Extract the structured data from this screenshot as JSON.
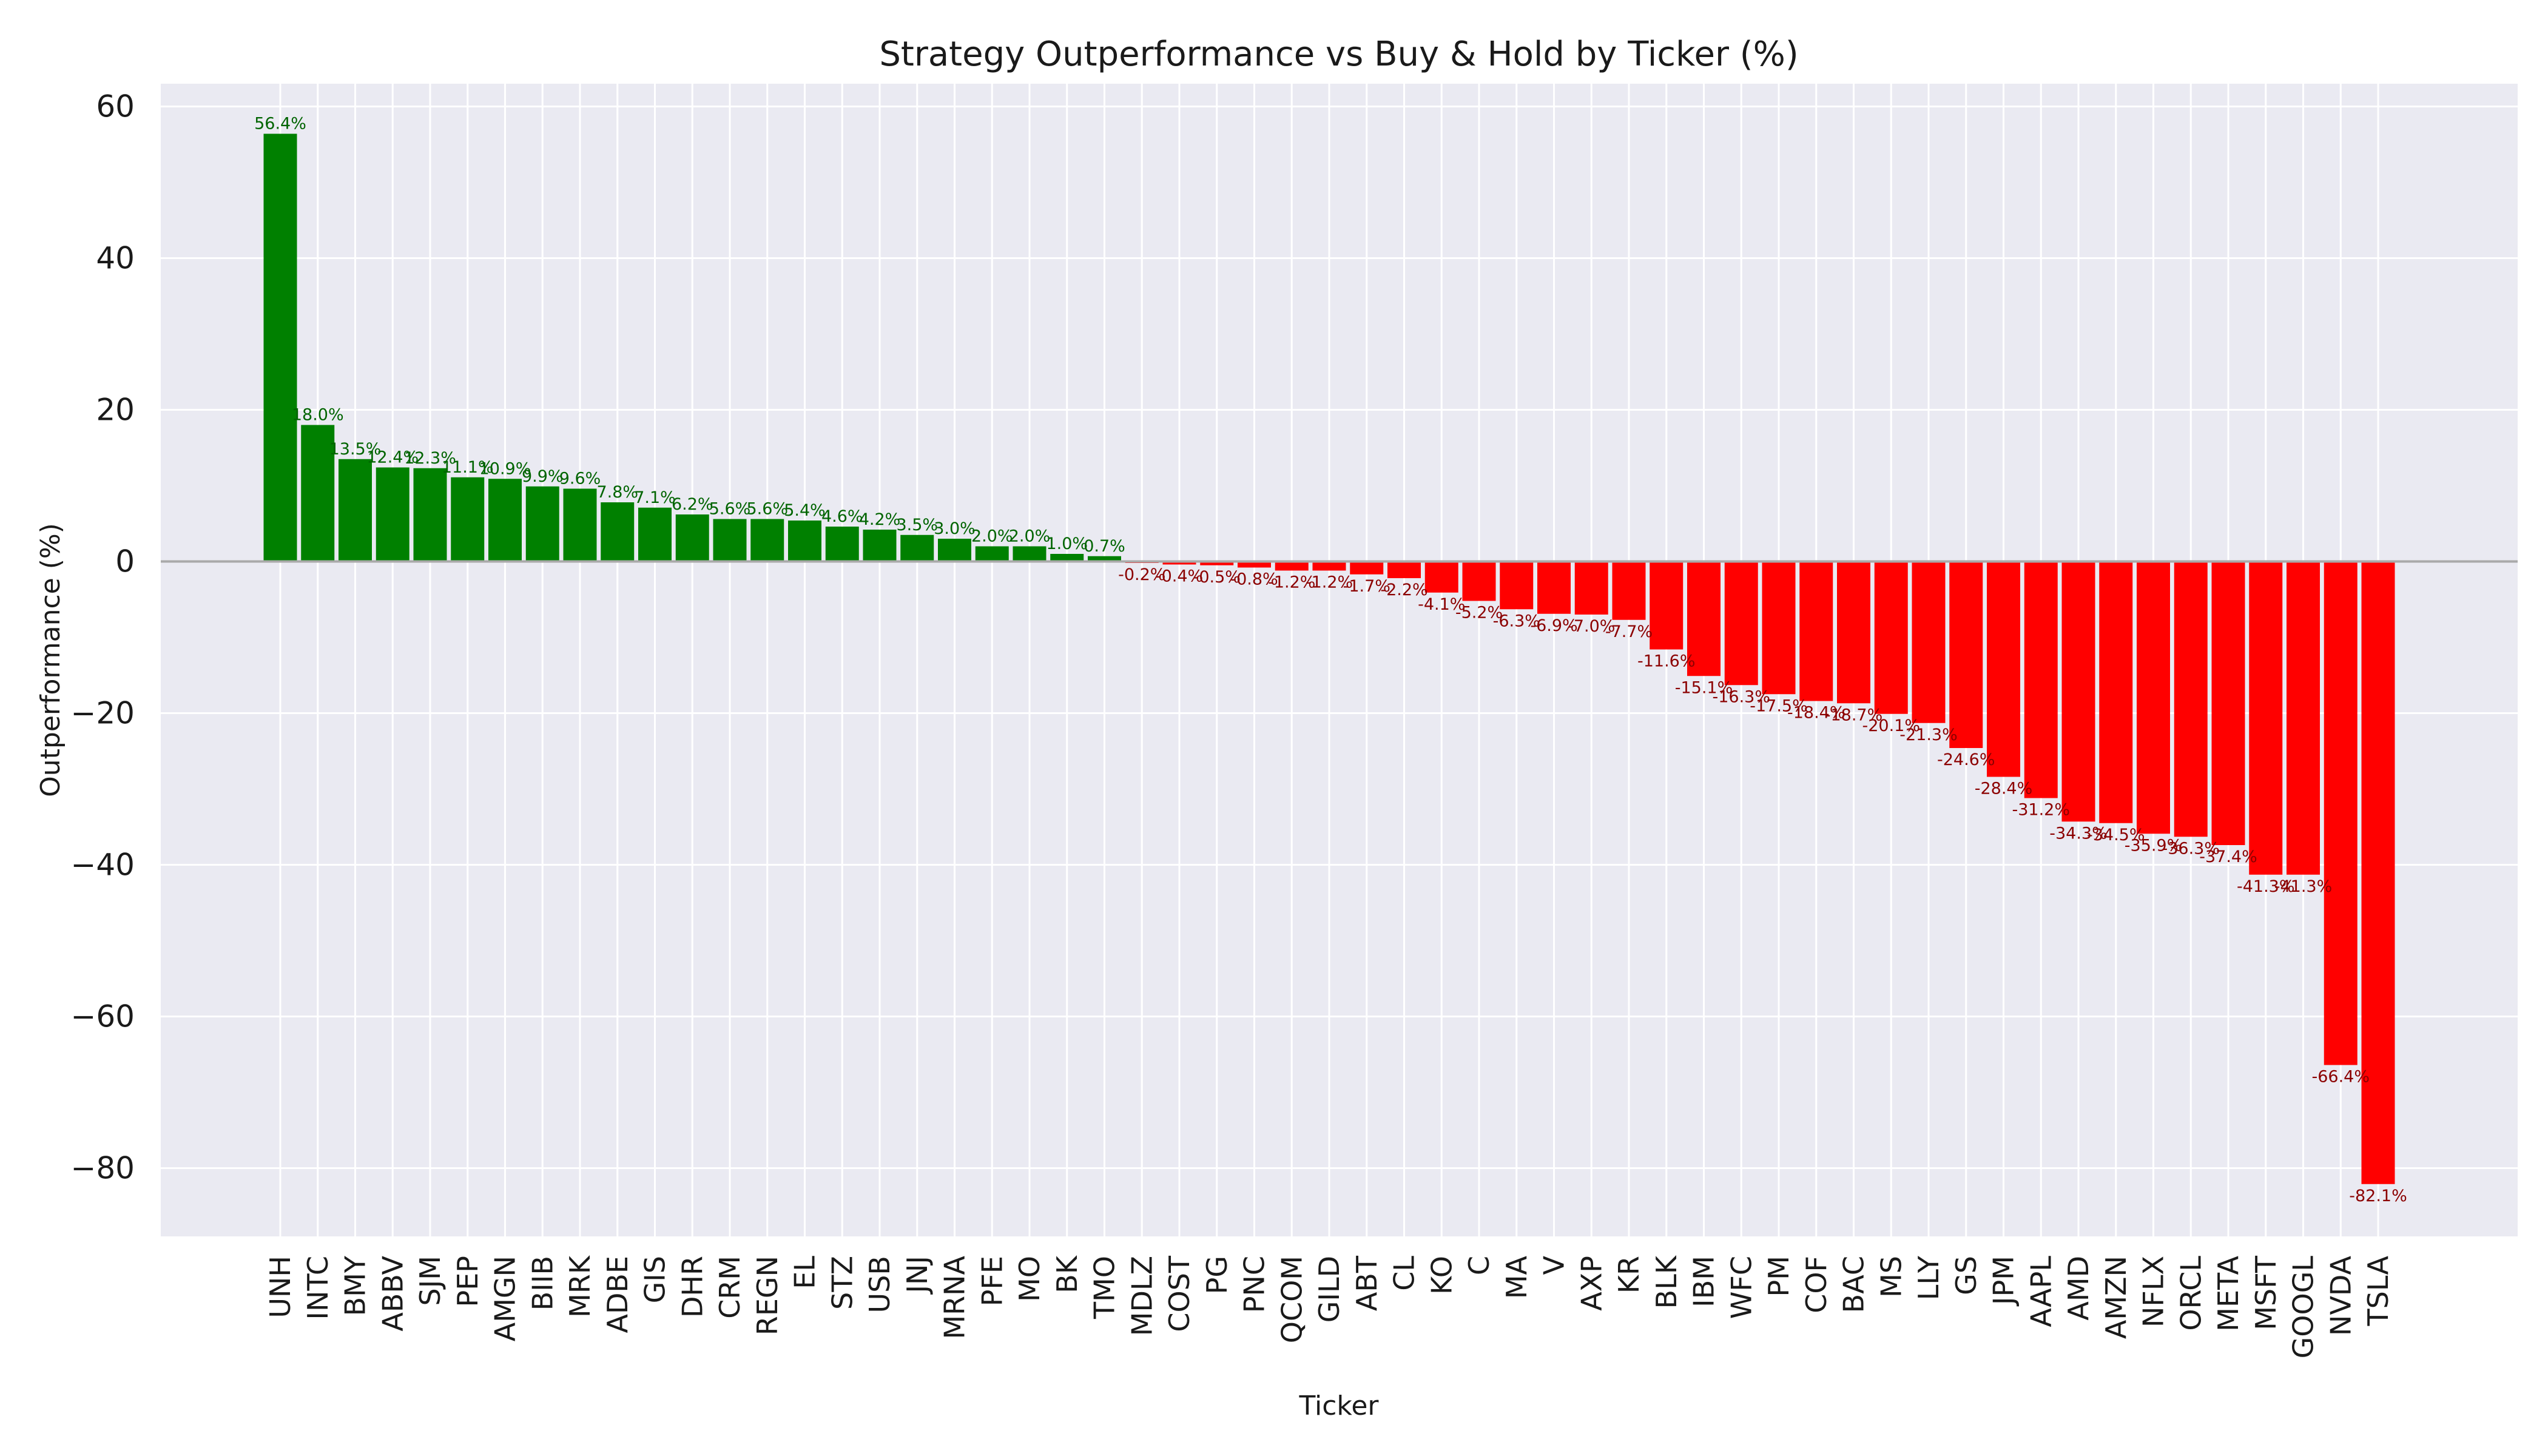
{
  "chart_data": {
    "type": "bar",
    "title": "Strategy Outperformance vs Buy & Hold by Ticker (%)",
    "xlabel": "Ticker",
    "ylabel": "Outperformance (%)",
    "ylim": [
      -89,
      63
    ],
    "yticks": [
      60,
      40,
      20,
      0,
      -20,
      -40,
      -60,
      -80
    ],
    "ytick_labels": [
      "60",
      "40",
      "20",
      "0",
      "−20",
      "−40",
      "−60",
      "−80"
    ],
    "grid": true,
    "zero_line": true,
    "colors": {
      "positive": "#008000",
      "negative": "#ff0000",
      "positive_label": "#006400",
      "negative_label": "#8b0000",
      "background": "#eaeaf2",
      "grid": "#ffffff",
      "zero_line": "#aaaaaa"
    },
    "categories": [
      "UNH",
      "INTC",
      "BMY",
      "ABBV",
      "SJM",
      "PEP",
      "AMGN",
      "BIIB",
      "MRK",
      "ADBE",
      "GIS",
      "DHR",
      "CRM",
      "REGN",
      "EL",
      "STZ",
      "USB",
      "JNJ",
      "MRNA",
      "PFE",
      "MO",
      "BK",
      "TMO",
      "MDLZ",
      "COST",
      "PG",
      "PNC",
      "QCOM",
      "GILD",
      "ABT",
      "CL",
      "KO",
      "C",
      "MA",
      "V",
      "AXP",
      "KR",
      "BLK",
      "IBM",
      "WFC",
      "PM",
      "COF",
      "BAC",
      "MS",
      "LLY",
      "GS",
      "JPM",
      "AAPL",
      "AMD",
      "AMZN",
      "NFLX",
      "ORCL",
      "META",
      "MSFT",
      "GOOGL",
      "NVDA",
      "TSLA"
    ],
    "values": [
      56.4,
      18.0,
      13.5,
      12.4,
      12.3,
      11.1,
      10.9,
      9.9,
      9.6,
      7.8,
      7.1,
      6.2,
      5.6,
      5.6,
      5.4,
      4.6,
      4.2,
      3.5,
      3.0,
      2.0,
      2.0,
      1.0,
      0.7,
      -0.2,
      -0.4,
      -0.5,
      -0.8,
      -1.2,
      -1.2,
      -1.7,
      -2.2,
      -4.1,
      -5.2,
      -6.3,
      -6.9,
      -7.0,
      -7.7,
      -11.6,
      -15.1,
      -16.3,
      -17.5,
      -18.4,
      -18.7,
      -20.1,
      -21.3,
      -24.6,
      -28.4,
      -31.2,
      -34.3,
      -34.5,
      -35.9,
      -36.3,
      -37.4,
      -41.3,
      -41.3,
      -66.4,
      -82.1
    ],
    "data_labels": [
      "56.4%",
      "18.0%",
      "13.5%",
      "12.4%",
      "12.3%",
      "11.1%",
      "10.9%",
      "9.9%",
      "9.6%",
      "7.8%",
      "7.1%",
      "6.2%",
      "5.6%",
      "5.6%",
      "5.4%",
      "4.6%",
      "4.2%",
      "3.5%",
      "3.0%",
      "2.0%",
      "2.0%",
      "1.0%",
      "0.7%",
      "-0.2%",
      "-0.4%",
      "-0.5%",
      "-0.8%",
      "-1.2%",
      "-1.2%",
      "-1.7%",
      "-2.2%",
      "-4.1%",
      "-5.2%",
      "-6.3%",
      "-6.9%",
      "-7.0%",
      "-7.7%",
      "-11.6%",
      "-15.1%",
      "-16.3%",
      "-17.5%",
      "-18.4%",
      "-18.7%",
      "-20.1%",
      "-21.3%",
      "-24.6%",
      "-28.4%",
      "-31.2%",
      "-34.3%",
      "-34.5%",
      "-35.9%",
      "-36.3%",
      "-37.4%",
      "-41.3%",
      "-41.3%",
      "-66.4%",
      "-82.1%"
    ]
  }
}
